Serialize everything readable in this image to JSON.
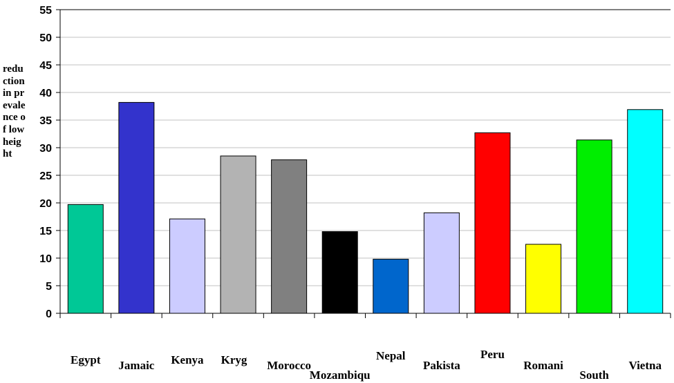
{
  "chart_data": {
    "type": "bar",
    "title": "",
    "xlabel": "",
    "ylabel": "reduction in prevalence of low height",
    "ylim": [
      0,
      55
    ],
    "yticks": [
      0,
      5,
      10,
      15,
      20,
      25,
      30,
      35,
      40,
      45,
      50,
      55
    ],
    "grid": true,
    "categories": [
      "Egypt",
      "Jamaic",
      "Kenya",
      "Kryg",
      "Morocco",
      "Mozambiqu",
      "Nepal",
      "Pakista",
      "Peru",
      "Romani",
      "South",
      "Vietna"
    ],
    "values": [
      19.7,
      38.2,
      17.1,
      28.5,
      27.8,
      14.8,
      9.8,
      18.2,
      32.7,
      12.5,
      31.4,
      36.9
    ],
    "colors": [
      "#00c896",
      "#3333cc",
      "#ccccff",
      "#b3b3b3",
      "#808080",
      "#000000",
      "#0066cc",
      "#ccccff",
      "#ff0000",
      "#ffff00",
      "#00ee00",
      "#00ffff"
    ]
  }
}
